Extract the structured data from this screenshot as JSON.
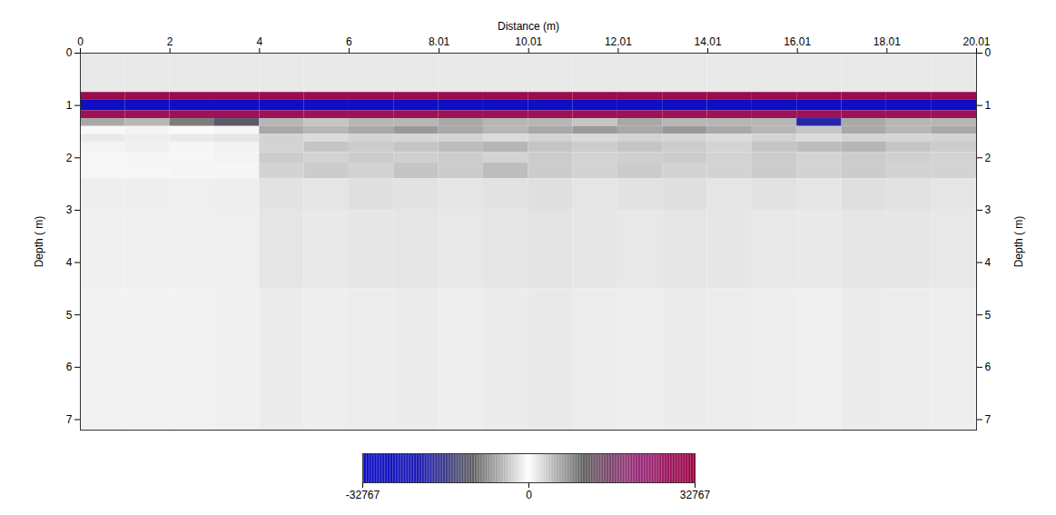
{
  "chart_data": {
    "type": "heatmap",
    "xlabel": "Distance (m)",
    "ylabel": "Depth ( m)",
    "y2label": "Depth ( m)",
    "xlim": [
      0,
      20.01
    ],
    "xticks": [
      0,
      2,
      4,
      6,
      8.01,
      10.01,
      12.01,
      14.01,
      16.01,
      18.01,
      20.01
    ],
    "ylim": [
      0,
      7.2
    ],
    "yticks": [
      0,
      1,
      2,
      3,
      4,
      5,
      6,
      7
    ],
    "y2lim": [
      0,
      7.2
    ],
    "y2ticks": [
      0,
      1,
      2,
      3,
      4,
      5,
      6,
      7
    ],
    "x_edges": [
      0,
      1,
      2,
      3,
      4,
      5,
      6,
      7,
      8,
      9,
      10,
      11,
      12,
      13,
      14,
      15,
      16,
      17,
      18,
      19,
      20.01
    ],
    "y_edges": [
      0,
      0.75,
      0.9,
      1.1,
      1.25,
      1.4,
      1.55,
      1.7,
      1.9,
      2.1,
      2.4,
      3.0,
      4.5,
      7.2
    ],
    "cells": [
      [
        1600,
        1600,
        1600,
        1600,
        1600,
        1600,
        1600,
        1600,
        1600,
        1600,
        1600,
        1600,
        1600,
        1600,
        1600,
        1600,
        1600,
        1600,
        1600,
        1600
      ],
      [
        30000,
        30000,
        30000,
        30000,
        30000,
        30000,
        30000,
        30000,
        30000,
        30000,
        30000,
        30000,
        30000,
        30000,
        30000,
        30000,
        30000,
        30000,
        30000,
        30000
      ],
      [
        -30000,
        -30000,
        -30000,
        -30000,
        -30000,
        -30000,
        -30000,
        -30000,
        -30000,
        -30000,
        -30000,
        -30000,
        -30000,
        -30000,
        -30000,
        -30000,
        -30000,
        -30000,
        -30000,
        -30000
      ],
      [
        28000,
        28000,
        28000,
        28000,
        28000,
        28000,
        28000,
        28000,
        28000,
        28000,
        28000,
        28000,
        28000,
        28000,
        28000,
        28000,
        28000,
        28000,
        28000,
        28000
      ],
      [
        -6000,
        -5000,
        -9000,
        -12000,
        -5000,
        -4000,
        -5000,
        -5000,
        -6000,
        -5000,
        -5000,
        -4000,
        -6000,
        -5000,
        -5000,
        -5000,
        -20000,
        -6000,
        -5000,
        -5000
      ],
      [
        500,
        800,
        400,
        600,
        -6000,
        -5000,
        -6000,
        -7000,
        -6000,
        -5000,
        -6000,
        -7000,
        -6000,
        -7000,
        -6000,
        -5000,
        -4000,
        -6000,
        -5000,
        -6000
      ],
      [
        1500,
        1200,
        1500,
        1800,
        3000,
        2500,
        3000,
        2800,
        3000,
        2500,
        3000,
        2600,
        3000,
        2800,
        2500,
        3000,
        2500,
        3000,
        2800,
        3000
      ],
      [
        800,
        1000,
        700,
        900,
        -3000,
        -4000,
        -3500,
        -4000,
        -4500,
        -5000,
        -4000,
        -3500,
        -4000,
        -3500,
        -3000,
        -4000,
        -4500,
        -5000,
        -4000,
        -3500
      ],
      [
        600,
        700,
        600,
        800,
        3500,
        3000,
        3500,
        3200,
        3500,
        3000,
        3500,
        3000,
        3200,
        3500,
        3000,
        3500,
        3000,
        3500,
        3200,
        3000
      ],
      [
        600,
        600,
        700,
        700,
        -3000,
        -3500,
        -3000,
        -4000,
        -3500,
        -4500,
        -3500,
        -3000,
        -3500,
        -3000,
        -3000,
        -3500,
        -3000,
        -3500,
        -3000,
        -3000
      ],
      [
        1200,
        1200,
        1100,
        1200,
        2000,
        1800,
        2200,
        2000,
        1800,
        2000,
        2200,
        1800,
        2000,
        2200,
        1800,
        2000,
        1800,
        2200,
        2000,
        1800
      ],
      [
        1000,
        1000,
        1000,
        1100,
        1800,
        1500,
        1700,
        1800,
        1600,
        1800,
        1900,
        1700,
        1600,
        1800,
        1700,
        1600,
        1500,
        1800,
        1700,
        1600
      ],
      [
        900,
        900,
        900,
        1000,
        1400,
        1200,
        1300,
        1400,
        1200,
        1400,
        1500,
        1300,
        1200,
        1400,
        1300,
        1200,
        1100,
        1400,
        1300,
        1200
      ]
    ],
    "colorbar": {
      "range": [
        -32767,
        32767
      ],
      "ticks": [
        -32767,
        0,
        32767
      ],
      "colors": [
        "#0a0ac8",
        "#1a1ab4",
        "#606060",
        "#ffffff",
        "#606060",
        "#9a2a7a",
        "#9c0040"
      ]
    }
  }
}
